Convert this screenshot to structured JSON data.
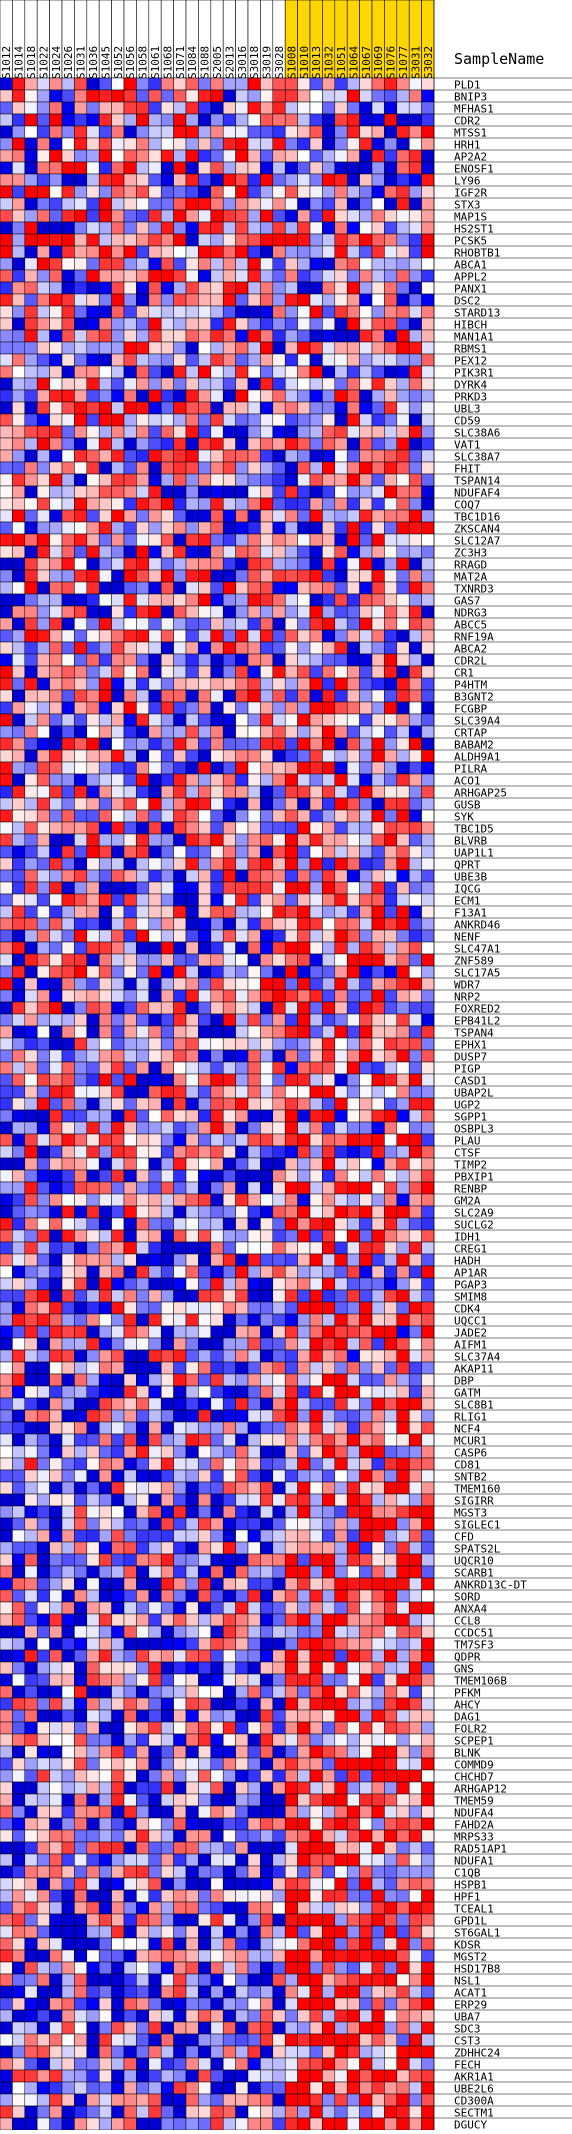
{
  "chart_data": {
    "type": "heatmap",
    "title": "",
    "xlabel": "",
    "ylabel": "",
    "header_label": "SampleName",
    "colors": {
      "low": "#0000ff",
      "mid": "#ffffff",
      "high": "#ff0000",
      "highlight_header": "#ffd700",
      "grid": "#000000"
    },
    "columns": [
      {
        "name": "S1012",
        "highlight": false
      },
      {
        "name": "S1014",
        "highlight": false
      },
      {
        "name": "S1018",
        "highlight": false
      },
      {
        "name": "S1022",
        "highlight": false
      },
      {
        "name": "S1024",
        "highlight": false
      },
      {
        "name": "S1026",
        "highlight": false
      },
      {
        "name": "S1031",
        "highlight": false
      },
      {
        "name": "S1036",
        "highlight": false
      },
      {
        "name": "S1045",
        "highlight": false
      },
      {
        "name": "S1052",
        "highlight": false
      },
      {
        "name": "S1056",
        "highlight": false
      },
      {
        "name": "S1058",
        "highlight": false
      },
      {
        "name": "S1061",
        "highlight": false
      },
      {
        "name": "S1068",
        "highlight": false
      },
      {
        "name": "S1071",
        "highlight": false
      },
      {
        "name": "S1084",
        "highlight": false
      },
      {
        "name": "S1088",
        "highlight": false
      },
      {
        "name": "S2005",
        "highlight": false
      },
      {
        "name": "S2013",
        "highlight": false
      },
      {
        "name": "S3016",
        "highlight": false
      },
      {
        "name": "S3018",
        "highlight": false
      },
      {
        "name": "S3019",
        "highlight": false
      },
      {
        "name": "S3028",
        "highlight": false
      },
      {
        "name": "S1008",
        "highlight": true
      },
      {
        "name": "S1010",
        "highlight": true
      },
      {
        "name": "S1013",
        "highlight": true
      },
      {
        "name": "S1032",
        "highlight": true
      },
      {
        "name": "S1051",
        "highlight": true
      },
      {
        "name": "S1064",
        "highlight": true
      },
      {
        "name": "S1067",
        "highlight": true
      },
      {
        "name": "S1069",
        "highlight": true
      },
      {
        "name": "S1076",
        "highlight": true
      },
      {
        "name": "S1077",
        "highlight": true
      },
      {
        "name": "S3031",
        "highlight": true
      },
      {
        "name": "S3032",
        "highlight": true
      }
    ],
    "rows": [
      "PLD1",
      "BNIP3",
      "MFHAS1",
      "CDR2",
      "MTSS1",
      "HRH1",
      "AP2A2",
      "ENOSF1",
      "LY96",
      "IGF2R",
      "STX3",
      "MAP1S",
      "HS2ST1",
      "PCSK5",
      "RHOBTB1",
      "ABCA1",
      "APPL2",
      "PANX1",
      "DSC2",
      "STARD13",
      "HIBCH",
      "MAN1A1",
      "RBMS1",
      "PEX12",
      "PIK3R1",
      "DYRK4",
      "PRKD3",
      "UBL3",
      "CD59",
      "SLC38A6",
      "VAT1",
      "SLC38A7",
      "FHIT",
      "TSPAN14",
      "NDUFAF4",
      "COQ7",
      "TBC1D16",
      "ZKSCAN4",
      "SLC12A7",
      "ZC3H3",
      "RRAGD",
      "MAT2A",
      "TXNRD3",
      "GAS7",
      "NDRG3",
      "ABCC5",
      "RNF19A",
      "ABCA2",
      "CDR2L",
      "CR1",
      "P4HTM",
      "B3GNT2",
      "FCGBP",
      "SLC39A4",
      "CRTAP",
      "BABAM2",
      "ALDH9A1",
      "PILRA",
      "ACO1",
      "ARHGAP25",
      "GUSB",
      "SYK",
      "TBC1D5",
      "BLVRB",
      "UAP1L1",
      "QPRT",
      "UBE3B",
      "IQCG",
      "ECM1",
      "F13A1",
      "ANKRD46",
      "NENF",
      "SLC47A1",
      "ZNF589",
      "SLC17A5",
      "WDR7",
      "NRP2",
      "FOXRED2",
      "EPB41L2",
      "TSPAN4",
      "EPHX1",
      "DUSP7",
      "PIGP",
      "CASD1",
      "UBAP2L",
      "UGP2",
      "SGPP1",
      "OSBPL3",
      "PLAU",
      "CTSF",
      "TIMP2",
      "PBXIP1",
      "RENBP",
      "GM2A",
      "SLC2A9",
      "SUCLG2",
      "IDH1",
      "CREG1",
      "HADH",
      "AP1AR",
      "PGAP3",
      "SMIM8",
      "CDK4",
      "UQCC1",
      "JADE2",
      "AIFM1",
      "SLC37A4",
      "AKAP11",
      "DBP",
      "GATM",
      "SLC8B1",
      "RLIG1",
      "NCF4",
      "MCUR1",
      "CASP6",
      "CD81",
      "SNTB2",
      "TMEM160",
      "SIGIRR",
      "MGST3",
      "SIGLEC1",
      "CFD",
      "SPATS2L",
      "UQCR10",
      "SCARB1",
      "ANKRD13C-DT",
      "SORD",
      "ANXA4",
      "CCL8",
      "CCDC51",
      "TM7SF3",
      "QDPR",
      "GNS",
      "TMEM106B",
      "PFKM",
      "AHCY",
      "DAG1",
      "FOLR2",
      "SCPEP1",
      "BLNK",
      "COMMD9",
      "CHCHD7",
      "ARHGAP12",
      "TMEM59",
      "NDUFA4",
      "FAHD2A",
      "MRPS33",
      "RAD51AP1",
      "NDUFA1",
      "C1QB",
      "HSPB1",
      "HPF1",
      "TCEAL1",
      "GPD1L",
      "ST6GAL1",
      "KDSR",
      "MGST2",
      "HSD17B8",
      "NSL1",
      "ACAT1",
      "ERP29",
      "UBA7",
      "SDC3",
      "CST3",
      "ZDHHC24",
      "FECH",
      "AKR1A1",
      "UBE2L6",
      "CD300A",
      "SECTM1",
      "DGUCY"
    ],
    "value_range": [
      -1,
      1
    ],
    "values": "deterministic pseudo-random z-scores per cell (0/1 shading); high values enriched in highlighted group toward lower rows"
  }
}
